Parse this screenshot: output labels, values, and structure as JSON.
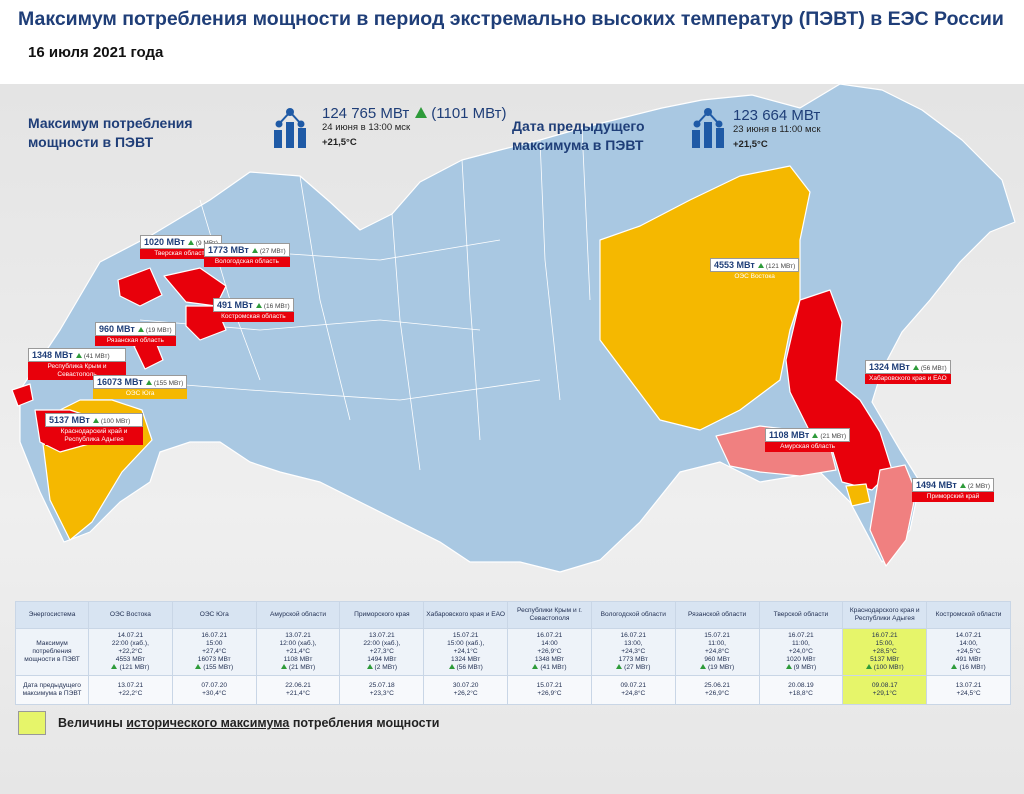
{
  "header": {
    "title": "Максимум потребления мощности в период экстремально высоких температур  (ПЭВТ) в ЕЭС России",
    "subtitle": "16 июля 2021 года"
  },
  "summary": {
    "current": {
      "label": "Максимум потребления мощности в ПЭВТ",
      "value": "124 765 МВт",
      "delta": "(1101 МВт)",
      "time": "24 июня в 13:00 мск",
      "temp": "+21,5°С"
    },
    "previous": {
      "label": "Дата предыдущего максимума в ПЭВТ",
      "value": "123 664 МВт",
      "time": "23 июня в 11:00 мск",
      "temp": "+21,5°С"
    }
  },
  "callouts": [
    {
      "value": "1020 МВт",
      "delta": "(9 МВт)",
      "label": "Тверская  область",
      "color": "#e8000b"
    },
    {
      "value": "1773 МВт",
      "delta": "(27 МВт)",
      "label": "Вологодская область",
      "color": "#e8000b"
    },
    {
      "value": "491 МВт",
      "delta": "(16 МВт)",
      "label": "Костромская область",
      "color": "#e8000b"
    },
    {
      "value": "960 МВт",
      "delta": "(19 МВт)",
      "label": "Рязанская область",
      "color": "#e8000b"
    },
    {
      "value": "1348 МВт",
      "delta": "(41 МВт)",
      "label": "Республика Крым и Севастополь",
      "color": "#e8000b"
    },
    {
      "value": "16073 МВт",
      "delta": "(155 МВт)",
      "label": "ОЭС Юга",
      "color": "#f5b800"
    },
    {
      "value": "5137 МВт",
      "delta": "(100 МВт)",
      "label": "Краснодарский край и Республика Адыгея",
      "color": "#e8000b"
    },
    {
      "value": "4553 МВт",
      "delta": "(121 МВт)",
      "label": "ОЭС Востока",
      "color": "#f5b800"
    },
    {
      "value": "1324 МВт",
      "delta": "(56 МВт)",
      "label": "Хабаровского края и ЕАО",
      "color": "#e8000b"
    },
    {
      "value": "1108 МВт",
      "delta": "(21 МВт)",
      "label": "Амурская область",
      "color": "#e8000b"
    },
    {
      "value": "1494 МВт",
      "delta": "(2 МВт)",
      "label": "Приморский край",
      "color": "#e8000b"
    }
  ],
  "table": {
    "highlight_color": "#e6f56a",
    "header": [
      "Энергосистема",
      "ОЭС Востока",
      "ОЭС Юга",
      "Амурской области",
      "Приморского края",
      "Хабаровского края и ЕАО",
      "Республики Крым и г. Севастополя",
      "Вологодской области",
      "Рязанской области",
      "Тверской области",
      "Краснодарского края и Республики Адыгея",
      "Костромской области"
    ],
    "rows": [
      {
        "label": "Максимум потребления мощности в ПЭВТ",
        "cells": [
          {
            "lines": [
              "14.07.21",
              "22:00 (хаб.),",
              "+22,2°С",
              "4553 МВт"
            ],
            "delta": "(121 МВт)"
          },
          {
            "lines": [
              "16.07.21",
              "15:00",
              "+27,4°С",
              "16073 МВт"
            ],
            "delta": "(155 МВт)"
          },
          {
            "lines": [
              "13.07.21",
              "12:00 (хаб.),",
              "+21,4°С",
              "1108 МВт"
            ],
            "delta": "(21 МВт)"
          },
          {
            "lines": [
              "13.07.21",
              "22:00 (хаб.),",
              "+27,3°С",
              "1494 МВт"
            ],
            "delta": "(2 МВт)"
          },
          {
            "lines": [
              "15.07.21",
              "15:00 (хаб.),",
              "+24,1°С",
              "1324 МВт"
            ],
            "delta": "(56 МВт)"
          },
          {
            "lines": [
              "16.07.21",
              "14:00",
              "+26,9°С",
              "1348 МВт"
            ],
            "delta": "(41 МВт)"
          },
          {
            "lines": [
              "16.07.21",
              "13:00,",
              "+24,3°С",
              "1773 МВт"
            ],
            "delta": "(27 МВт)"
          },
          {
            "lines": [
              "15.07.21",
              "11:00,",
              "+24,8°С",
              "960 МВт"
            ],
            "delta": "(19 МВт)"
          },
          {
            "lines": [
              "16.07.21",
              "11:00,",
              "+24,0°С",
              "1020 МВт"
            ],
            "delta": "(9 МВт)"
          },
          {
            "lines": [
              "16.07.21",
              "15:00,",
              "+28,5°С",
              "5137 МВт"
            ],
            "delta": "(100 МВт)",
            "highlight": true
          },
          {
            "lines": [
              "14.07.21",
              "14:00,",
              "+24,5°С",
              "491 МВт"
            ],
            "delta": "(16 МВт)"
          }
        ]
      },
      {
        "label": "Дата предыдущего максимума в ПЭВТ",
        "cells": [
          {
            "lines": [
              "13.07.21",
              "+22,2°С"
            ]
          },
          {
            "lines": [
              "07.07.20",
              "+30,4°С"
            ]
          },
          {
            "lines": [
              "22.06.21",
              "+21,4°С"
            ]
          },
          {
            "lines": [
              "25.07.18",
              "+23,3°С"
            ]
          },
          {
            "lines": [
              "30.07.20",
              "+26,2°С"
            ]
          },
          {
            "lines": [
              "15.07.21",
              "+26,9°С"
            ]
          },
          {
            "lines": [
              "09.07.21",
              "+24,8°С"
            ]
          },
          {
            "lines": [
              "25.06.21",
              "+26,9°С"
            ]
          },
          {
            "lines": [
              "20.08.19",
              "+18,8°С"
            ]
          },
          {
            "lines": [
              "09.08.17",
              "+29,1°С"
            ],
            "highlight": true
          },
          {
            "lines": [
              "13.07.21",
              "+24,5°С"
            ]
          }
        ]
      }
    ]
  },
  "legend": {
    "parts": [
      "Величины ",
      "исторического максимума",
      " потребления мощности"
    ]
  }
}
